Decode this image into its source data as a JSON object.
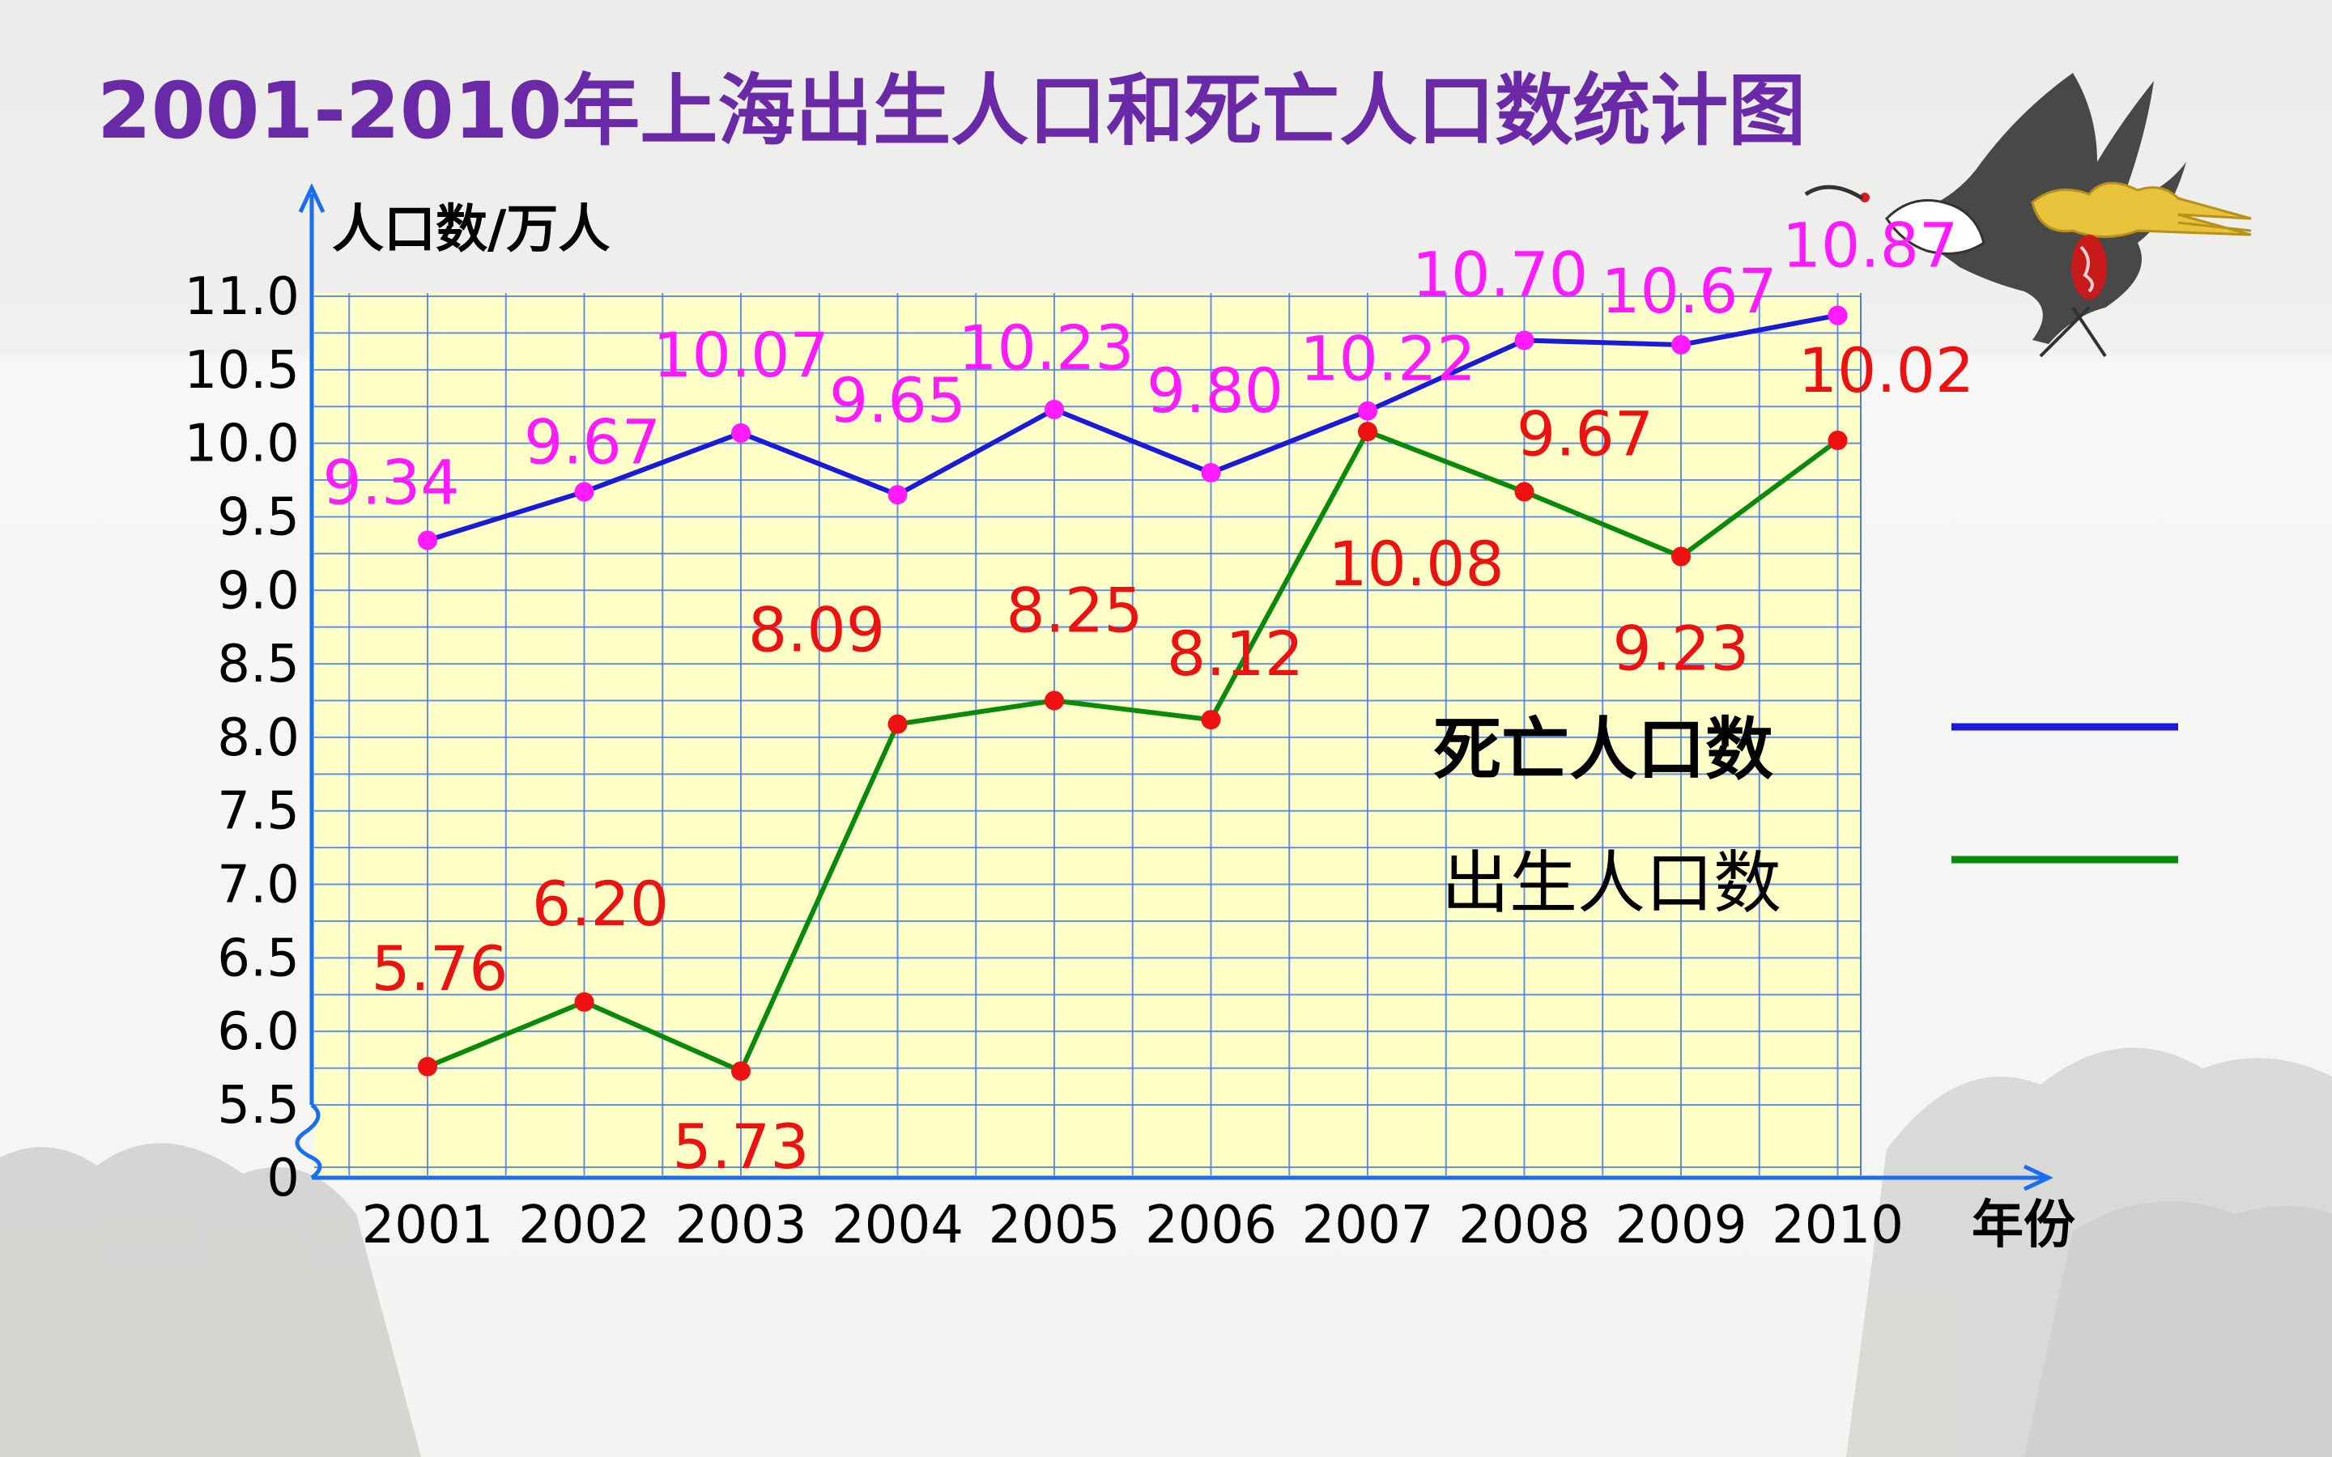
{
  "chart_data": {
    "type": "line",
    "title": "2001-2010年上海出生人口和死亡人口数统计图",
    "ylabel": "人口数/万人",
    "xlabel": "年份",
    "categories": [
      "2001",
      "2002",
      "2003",
      "2004",
      "2005",
      "2006",
      "2007",
      "2008",
      "2009",
      "2010"
    ],
    "y_ticks": [
      "0",
      "5.5",
      "6.0",
      "6.5",
      "7.0",
      "7.5",
      "8.0",
      "8.5",
      "9.0",
      "9.5",
      "10.0",
      "10.5",
      "11.0"
    ],
    "ylim": [
      5.5,
      11.0
    ],
    "y_axis_break": true,
    "grid": true,
    "series": [
      {
        "name": "死亡人口数",
        "color": "#1a1adb",
        "marker_color": "#ff1aff",
        "label_color": "#ff1aff",
        "values": [
          9.34,
          9.67,
          10.07,
          9.65,
          10.23,
          9.8,
          10.22,
          10.7,
          10.67,
          10.87
        ],
        "labels": [
          "9.34",
          "9.67",
          "10.07",
          "9.65",
          "10.23",
          "9.80",
          "10.22",
          "10.70",
          "10.67",
          "10.87"
        ]
      },
      {
        "name": "出生人口数",
        "color": "#0a8a0a",
        "marker_color": "#ee1111",
        "label_color": "#ee1111",
        "values": [
          5.76,
          6.2,
          5.73,
          8.09,
          8.25,
          8.12,
          10.08,
          9.67,
          9.23,
          10.02
        ],
        "labels": [
          "5.76",
          "6.20",
          "5.73",
          "8.09",
          "8.25",
          "8.12",
          "10.08",
          "9.67",
          "9.23",
          "10.02"
        ]
      }
    ],
    "legend_position": "right",
    "colors": {
      "plot_background": "#ffffc8",
      "grid": "#4a7cf0",
      "axis": "#1a6ef0",
      "title": "#6a2aa8",
      "text": "#000000"
    }
  },
  "decorations": {
    "crane_icon": "crane-icon",
    "cloud_icon": "cloud-icon",
    "seal_icon": "seal-icon",
    "mountain_icon": "mountain-icon"
  }
}
